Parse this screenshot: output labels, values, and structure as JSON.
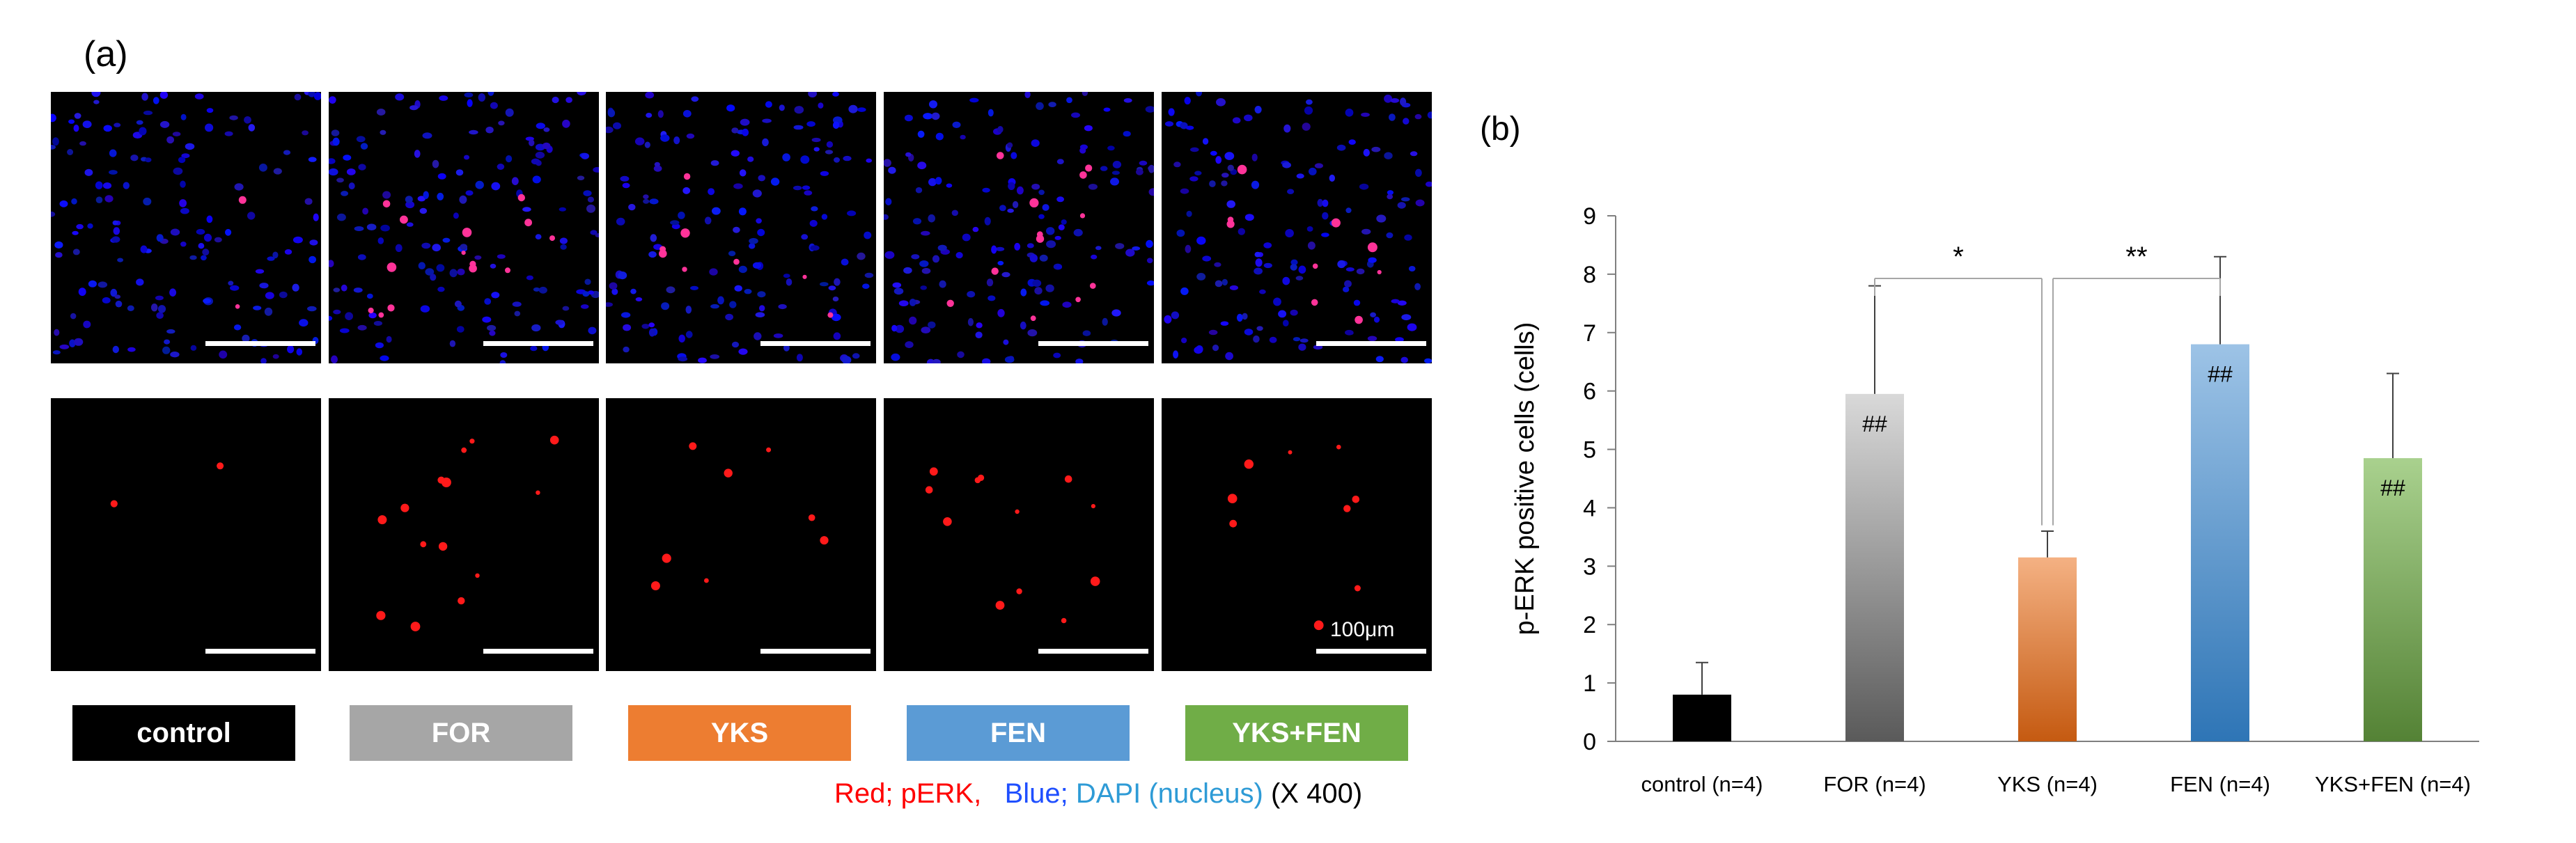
{
  "figure": {
    "panel_a_label": "(a)",
    "panel_b_label": "(b)",
    "scale_text": "100μm",
    "legend": {
      "red": "Red; pERK",
      "separator": ",",
      "blue_prefix": "Blue; ",
      "blue_dapi": "DAPI (nucleus)",
      "magnification": "(X 400)"
    },
    "groups": [
      {
        "name": "control",
        "color": "#000000"
      },
      {
        "name": "FOR",
        "color": "#a6a6a6"
      },
      {
        "name": "YKS",
        "color": "#ed7d31"
      },
      {
        "name": "FEN",
        "color": "#5b9bd5"
      },
      {
        "name": "YKS+FEN",
        "color": "#70ad47"
      }
    ]
  },
  "chart_data": {
    "type": "bar",
    "ylabel": "p-ERK positive cells (cells)",
    "ylim": [
      0,
      9
    ],
    "yticks": [
      "0",
      "1",
      "2",
      "3",
      "4",
      "5",
      "6",
      "7",
      "8",
      "9"
    ],
    "categories": [
      "control (n=4)",
      "FOR (n=4)",
      "YKS (n=4)",
      "FEN (n=4)",
      "YKS+FEN (n=4)"
    ],
    "values": [
      0.8,
      5.95,
      3.15,
      6.8,
      4.85
    ],
    "errors": [
      0.55,
      1.85,
      0.45,
      1.5,
      1.45
    ],
    "bar_labels": [
      "",
      "##",
      "",
      "##",
      "##"
    ],
    "colors_top": [
      "#000000",
      "#d9d9d9",
      "#f4b183",
      "#9dc3e6",
      "#a9d18e"
    ],
    "colors_bottom": [
      "#000000",
      "#5a5a5a",
      "#c55a11",
      "#2e75b6",
      "#548235"
    ],
    "significance": [
      {
        "from": 1,
        "to": 2,
        "label": "*"
      },
      {
        "from": 2,
        "to": 3,
        "label": "**"
      }
    ]
  }
}
